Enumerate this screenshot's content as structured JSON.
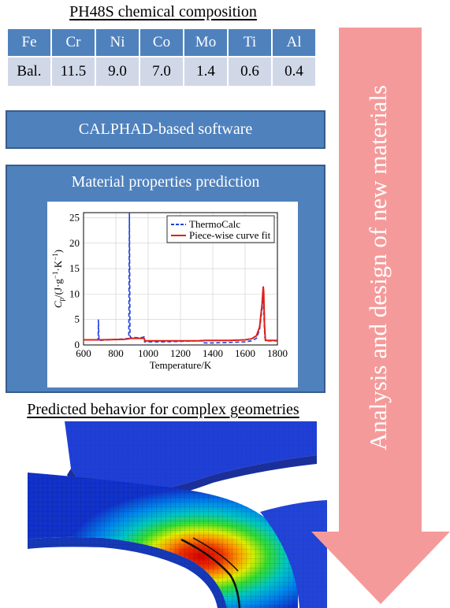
{
  "composition": {
    "title": "PH48S chemical composition",
    "elements": [
      "Fe",
      "Cr",
      "Ni",
      "Co",
      "Mo",
      "Ti",
      "Al"
    ],
    "values": [
      "Bal.",
      "11.5",
      "9.0",
      "7.0",
      "1.4",
      "0.6",
      "0.4"
    ],
    "header_color": "#4f81bd",
    "row_color": "#d0d8e8"
  },
  "calphad_label": "CALPHAD-based software",
  "properties": {
    "title": "Material properties prediction"
  },
  "chart_data": {
    "type": "line",
    "xlabel": "Temperature/K",
    "ylabel_main": "C",
    "ylabel_sub": "p",
    "ylabel_units": "/(J·g",
    "ylabel_sup1": "−1",
    "ylabel_mid": "·K",
    "ylabel_sup2": "−1",
    "ylabel_end": ")",
    "xlim": [
      600,
      1800
    ],
    "ylim": [
      0,
      26
    ],
    "x_ticks": [
      "600",
      "800",
      "1000",
      "1200",
      "1400",
      "1600",
      "1800"
    ],
    "y_ticks": [
      "0",
      "5",
      "10",
      "15",
      "20",
      "25"
    ],
    "legend_position": "top-right",
    "series": [
      {
        "name": "ThermoCalc",
        "color": "#1f3fdc",
        "style": "dashed",
        "x": [
          600,
          690,
          692,
          694,
          696,
          700,
          800,
          860,
          880,
          884,
          886,
          888,
          892,
          900,
          950,
          975,
          978,
          1000,
          1100,
          1200,
          1300,
          1340,
          1345,
          1350,
          1400,
          1500,
          1600,
          1640,
          1670,
          1690,
          1705,
          1712,
          1716,
          1722,
          1730,
          1800
        ],
        "y": [
          1.0,
          1.0,
          5.0,
          2.5,
          0.9,
          0.9,
          1.1,
          1.2,
          1.3,
          26.0,
          14.0,
          1.8,
          1.4,
          1.5,
          1.4,
          1.6,
          0.6,
          0.6,
          0.6,
          0.7,
          0.8,
          0.9,
          0.5,
          0.4,
          0.4,
          0.5,
          0.6,
          0.8,
          1.3,
          3.0,
          7.0,
          11.0,
          6.0,
          1.5,
          0.8,
          0.8
        ]
      },
      {
        "name": "Piece-wise curve fit",
        "color": "#e0201a",
        "style": "solid",
        "x": [
          600,
          685,
          700,
          850,
          880,
          890,
          975,
          980,
          1100,
          1200,
          1340,
          1345,
          1500,
          1600,
          1640,
          1670,
          1690,
          1705,
          1712,
          1715,
          1720,
          1726,
          1800
        ],
        "y": [
          1.0,
          1.0,
          1.0,
          1.1,
          1.2,
          1.3,
          1.3,
          0.8,
          0.8,
          0.8,
          0.8,
          0.9,
          0.9,
          1.0,
          1.2,
          1.8,
          3.5,
          8.0,
          11.5,
          10.5,
          4.0,
          0.9,
          0.9
        ]
      }
    ]
  },
  "geometry": {
    "title": "Predicted behavior for complex geometries"
  },
  "arrow": {
    "label": "Analysis and design of new materials",
    "color": "#f59a9a"
  }
}
